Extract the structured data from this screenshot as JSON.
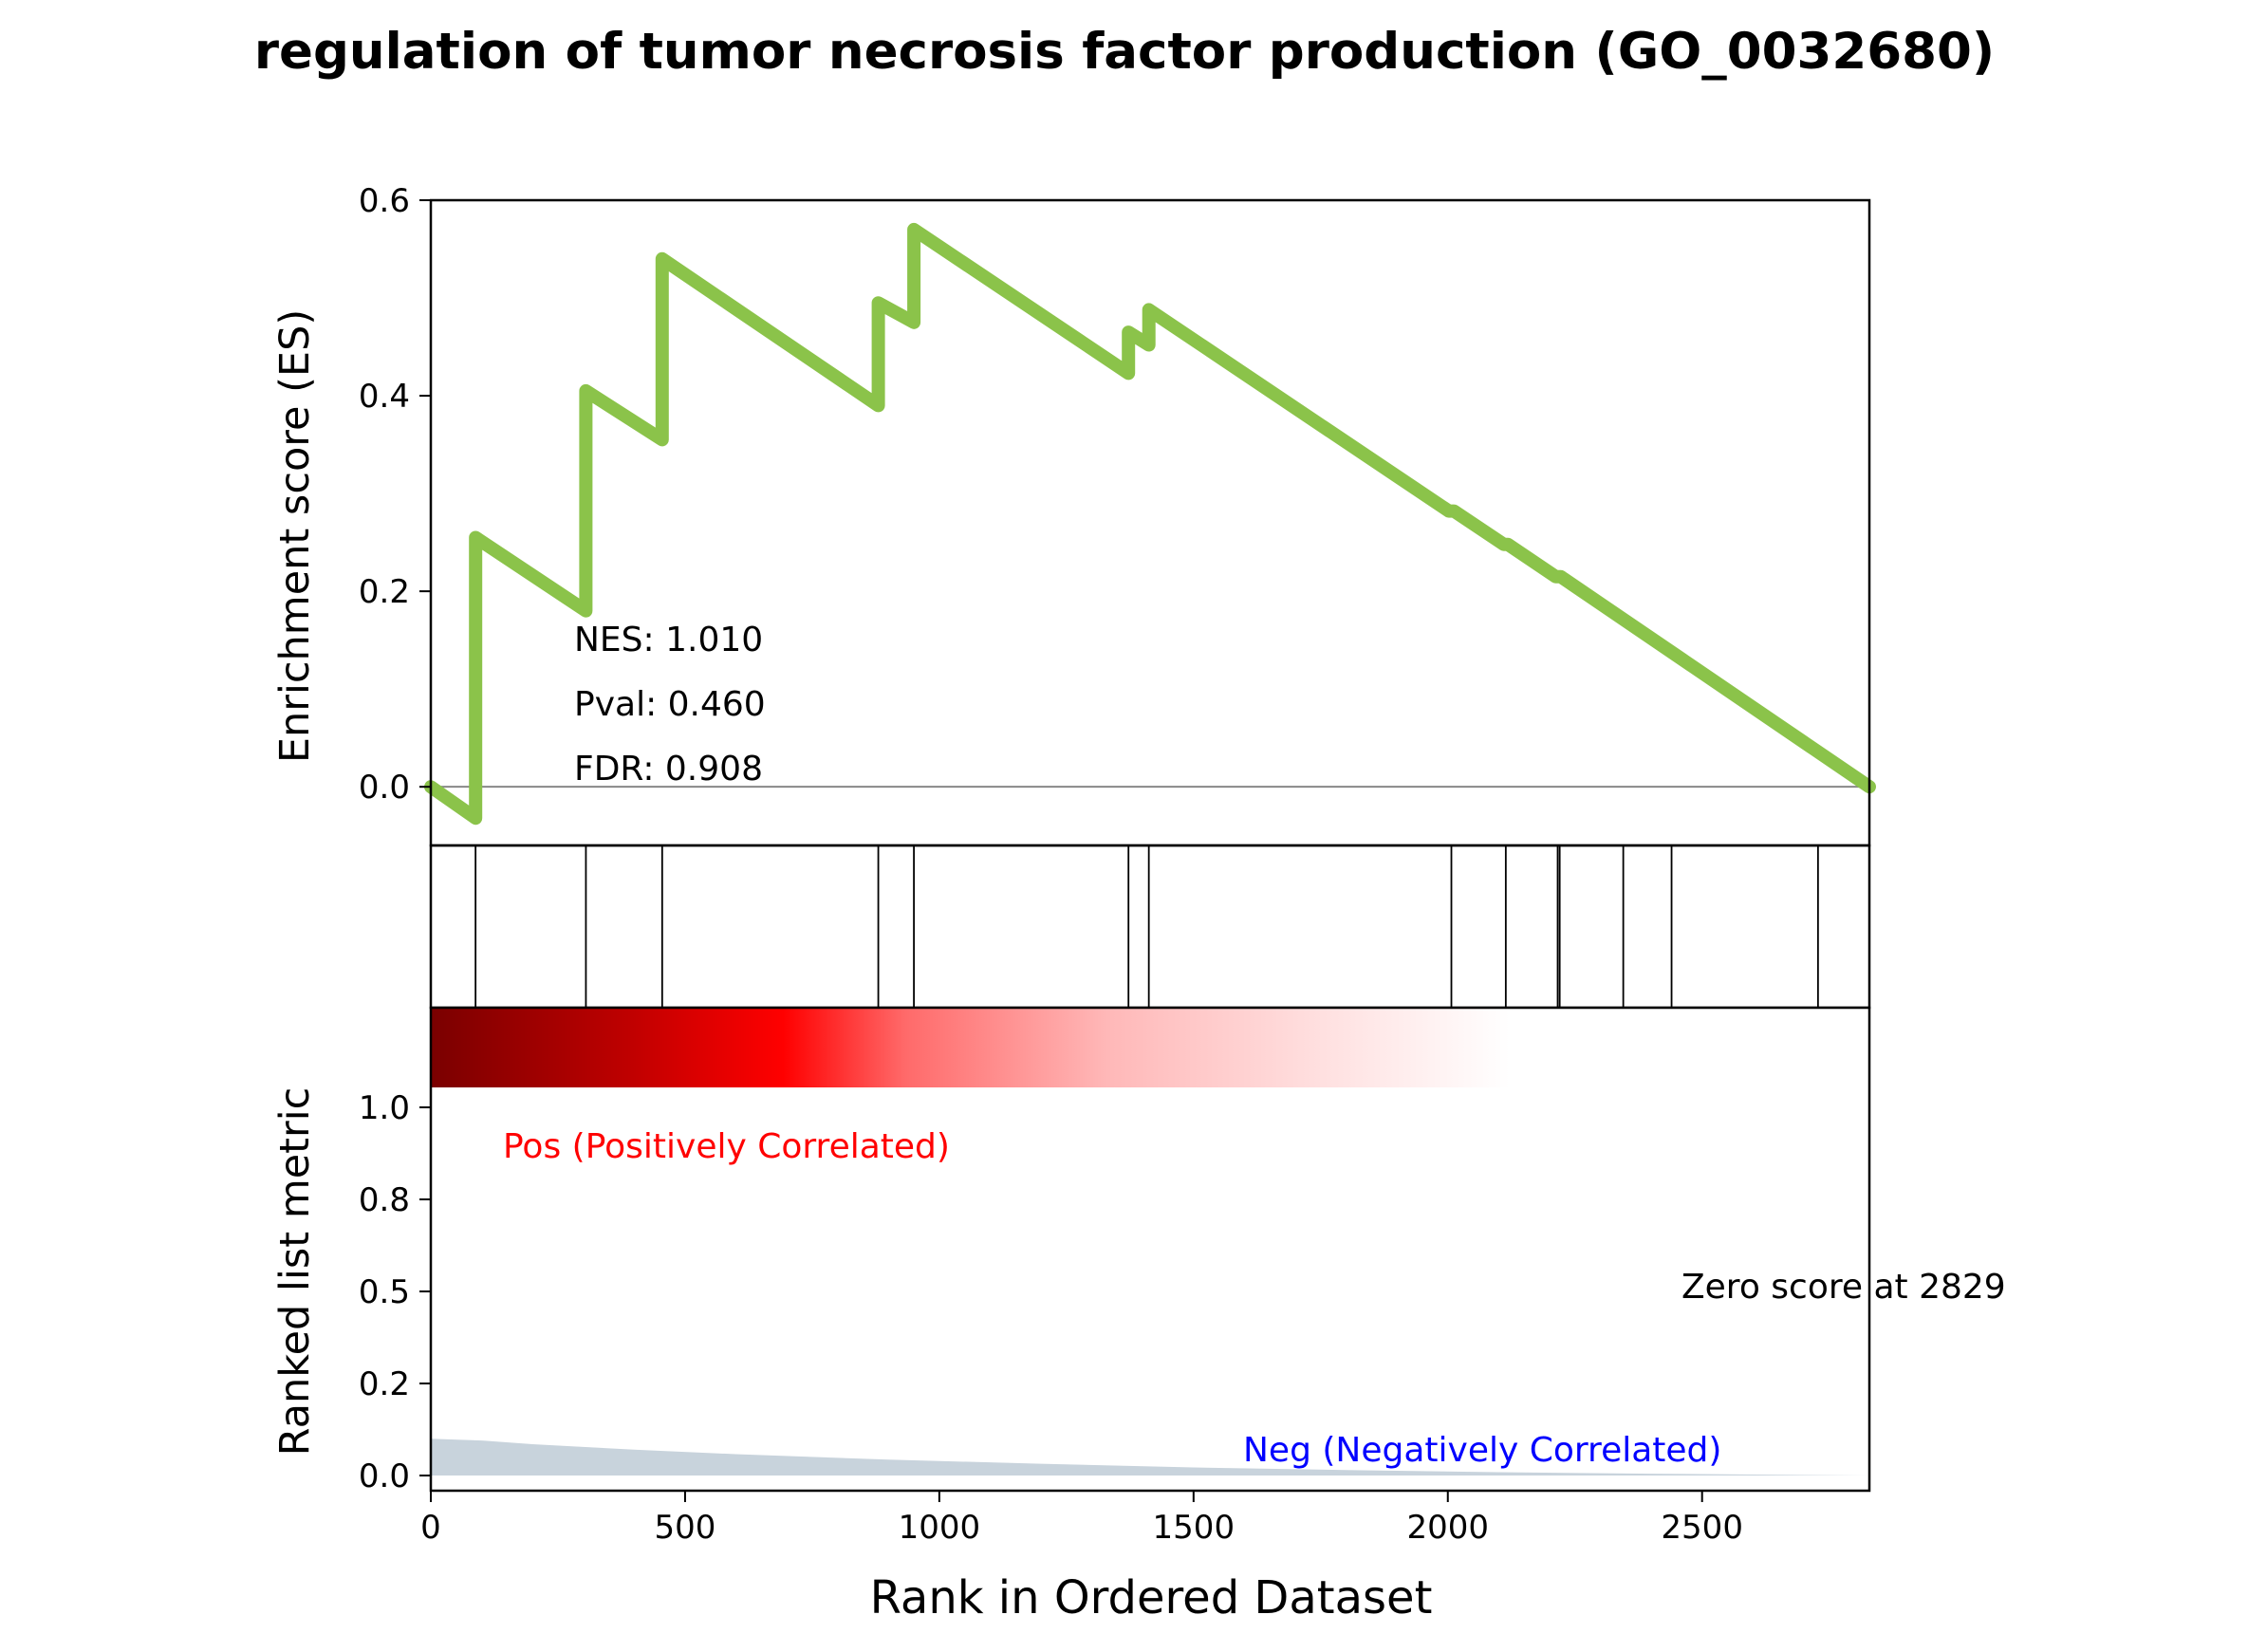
{
  "chart_data": {
    "type": "line",
    "title": "regulation of tumor necrosis factor production (GO_0032680)",
    "xlabel": "Rank in Ordered Dataset",
    "xlim": [
      0,
      2829
    ],
    "x_ticks": [
      "0",
      "500",
      "1000",
      "1500",
      "2000",
      "2500"
    ],
    "es_panel": {
      "ylabel": "Enrichment score (ES)",
      "ylim": [
        -0.06,
        0.6
      ],
      "y_ticks": [
        "0.0",
        "0.2",
        "0.4",
        "0.6"
      ],
      "line_color": "#8bc34a",
      "stats": {
        "nes": "NES: 1.010",
        "pval": "Pval: 0.460",
        "fdr": "FDR: 0.908"
      },
      "points": [
        [
          0,
          0.0
        ],
        [
          88,
          -0.032
        ],
        [
          88,
          0.255
        ],
        [
          305,
          0.18
        ],
        [
          305,
          0.405
        ],
        [
          455,
          0.355
        ],
        [
          455,
          0.54
        ],
        [
          880,
          0.39
        ],
        [
          880,
          0.495
        ],
        [
          950,
          0.475
        ],
        [
          950,
          0.57
        ],
        [
          1372,
          0.423
        ],
        [
          1372,
          0.465
        ],
        [
          1412,
          0.452
        ],
        [
          1412,
          0.488
        ],
        [
          2002,
          0.282
        ],
        [
          2012,
          0.282
        ],
        [
          2110,
          0.248
        ],
        [
          2118,
          0.248
        ],
        [
          2212,
          0.215
        ],
        [
          2222,
          0.215
        ],
        [
          2829,
          0.0
        ]
      ]
    },
    "hit_positions": [
      88,
      305,
      455,
      880,
      950,
      1372,
      1412,
      2007,
      2114,
      2216,
      2220,
      2345,
      2440,
      2728
    ],
    "metric_panel": {
      "ylabel": "Ranked list metric",
      "ylim": [
        -0.05,
        1.05
      ],
      "y_ticks": [
        "0.0",
        "0.2",
        "0.5",
        "0.8",
        "1.0"
      ],
      "pos_label": "Pos (Positively Correlated)",
      "neg_label": "Neg (Negatively Correlated)",
      "pos_color": "#ff0000",
      "neg_color": "#0000ff",
      "fill_color": "#c8d3dc",
      "zero_score_label": "Zero score at 2829",
      "metric_curve": [
        [
          0,
          0.1
        ],
        [
          100,
          0.095
        ],
        [
          200,
          0.085
        ],
        [
          400,
          0.07
        ],
        [
          600,
          0.058
        ],
        [
          900,
          0.043
        ],
        [
          1200,
          0.032
        ],
        [
          1500,
          0.022
        ],
        [
          1800,
          0.015
        ],
        [
          2100,
          0.009
        ],
        [
          2400,
          0.005
        ],
        [
          2829,
          0.0
        ]
      ]
    }
  }
}
